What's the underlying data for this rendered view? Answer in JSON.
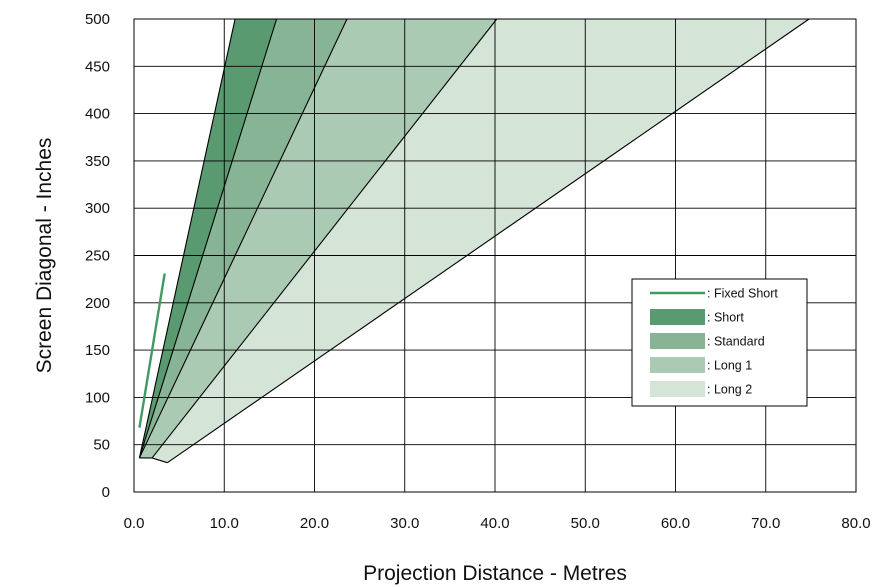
{
  "chart_data": {
    "type": "area",
    "xlabel": "Projection Distance - Metres",
    "ylabel": "Screen Diagonal - Inches",
    "xlim": [
      0,
      80
    ],
    "ylim": [
      0,
      500
    ],
    "x_ticks": [
      "0.0",
      "10.0",
      "20.0",
      "30.0",
      "40.0",
      "50.0",
      "60.0",
      "70.0",
      "80.0"
    ],
    "y_ticks": [
      "0",
      "50",
      "100",
      "150",
      "200",
      "250",
      "300",
      "350",
      "400",
      "450",
      "500"
    ],
    "grid": true,
    "legend_position": "right",
    "series": [
      {
        "name": ": Fixed Short",
        "kind": "line",
        "color": "#3f9a63",
        "points": [
          [
            0.6,
            68
          ],
          [
            3.4,
            231
          ]
        ]
      },
      {
        "name": ": Short",
        "kind": "band",
        "color": "#5a9a70",
        "lower": [
          [
            0.6,
            36
          ],
          [
            15.8,
            500
          ]
        ],
        "upper": [
          [
            0.6,
            36
          ],
          [
            11.2,
            500
          ]
        ]
      },
      {
        "name": ": Standard",
        "kind": "band",
        "color": "#88b496",
        "lower": [
          [
            0.6,
            36
          ],
          [
            23.6,
            500
          ]
        ],
        "upper": [
          [
            0.6,
            36
          ],
          [
            15.8,
            500
          ]
        ]
      },
      {
        "name": ": Long 1",
        "kind": "band",
        "color": "#abcab3",
        "lower": [
          [
            2.0,
            36
          ],
          [
            40.2,
            500
          ]
        ],
        "upper": [
          [
            0.6,
            36
          ],
          [
            23.6,
            500
          ]
        ]
      },
      {
        "name": ": Long 2",
        "kind": "band",
        "color": "#d4e4d7",
        "lower": [
          [
            3.7,
            31
          ],
          [
            74.8,
            500
          ]
        ],
        "upper": [
          [
            2.0,
            36
          ],
          [
            40.2,
            500
          ]
        ]
      }
    ]
  }
}
